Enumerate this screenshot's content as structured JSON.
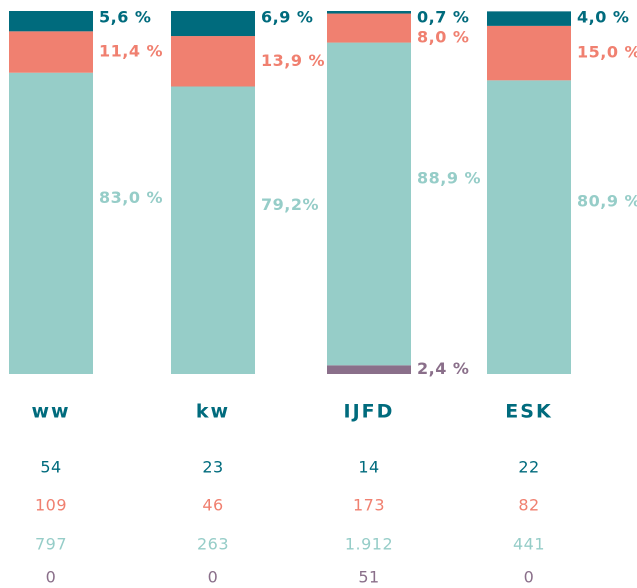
{
  "chart_data": {
    "type": "stacked_bar_100",
    "categories": [
      "ww",
      "kw",
      "IJFD",
      "ESK"
    ],
    "series": [
      {
        "color": "#8a6f8a",
        "values": [
          0,
          0,
          2.4,
          0
        ],
        "value_labels": [
          null,
          null,
          "2,4 %",
          null
        ],
        "counts": [
          0,
          0,
          51,
          0
        ],
        "count_labels": [
          "0",
          "0",
          "51",
          "0"
        ]
      },
      {
        "color": "#96cdc8",
        "values": [
          83.0,
          79.2,
          88.9,
          80.9
        ],
        "value_labels": [
          "83,0 %",
          "79,2%",
          "88,9 %",
          "80,9 %"
        ],
        "counts": [
          797,
          263,
          1912,
          441
        ],
        "count_labels": [
          "797",
          "263",
          "1.912",
          "441"
        ]
      },
      {
        "color": "#f08070",
        "values": [
          11.4,
          13.9,
          8.0,
          15.0
        ],
        "value_labels": [
          "11,4 %",
          "13,9 %",
          "8,0 %",
          "15,0 %"
        ],
        "counts": [
          109,
          46,
          173,
          82
        ],
        "count_labels": [
          "109",
          "46",
          "173",
          "82"
        ]
      },
      {
        "color": "#006b7d",
        "values": [
          5.6,
          6.9,
          0.7,
          4.0
        ],
        "value_labels": [
          "5,6 %",
          "6,9 %",
          "0,7 %",
          "4,0 %"
        ],
        "counts": [
          54,
          23,
          14,
          22
        ],
        "count_labels": [
          "54",
          "23",
          "14",
          "22"
        ]
      }
    ],
    "ylim": [
      0,
      100
    ]
  }
}
